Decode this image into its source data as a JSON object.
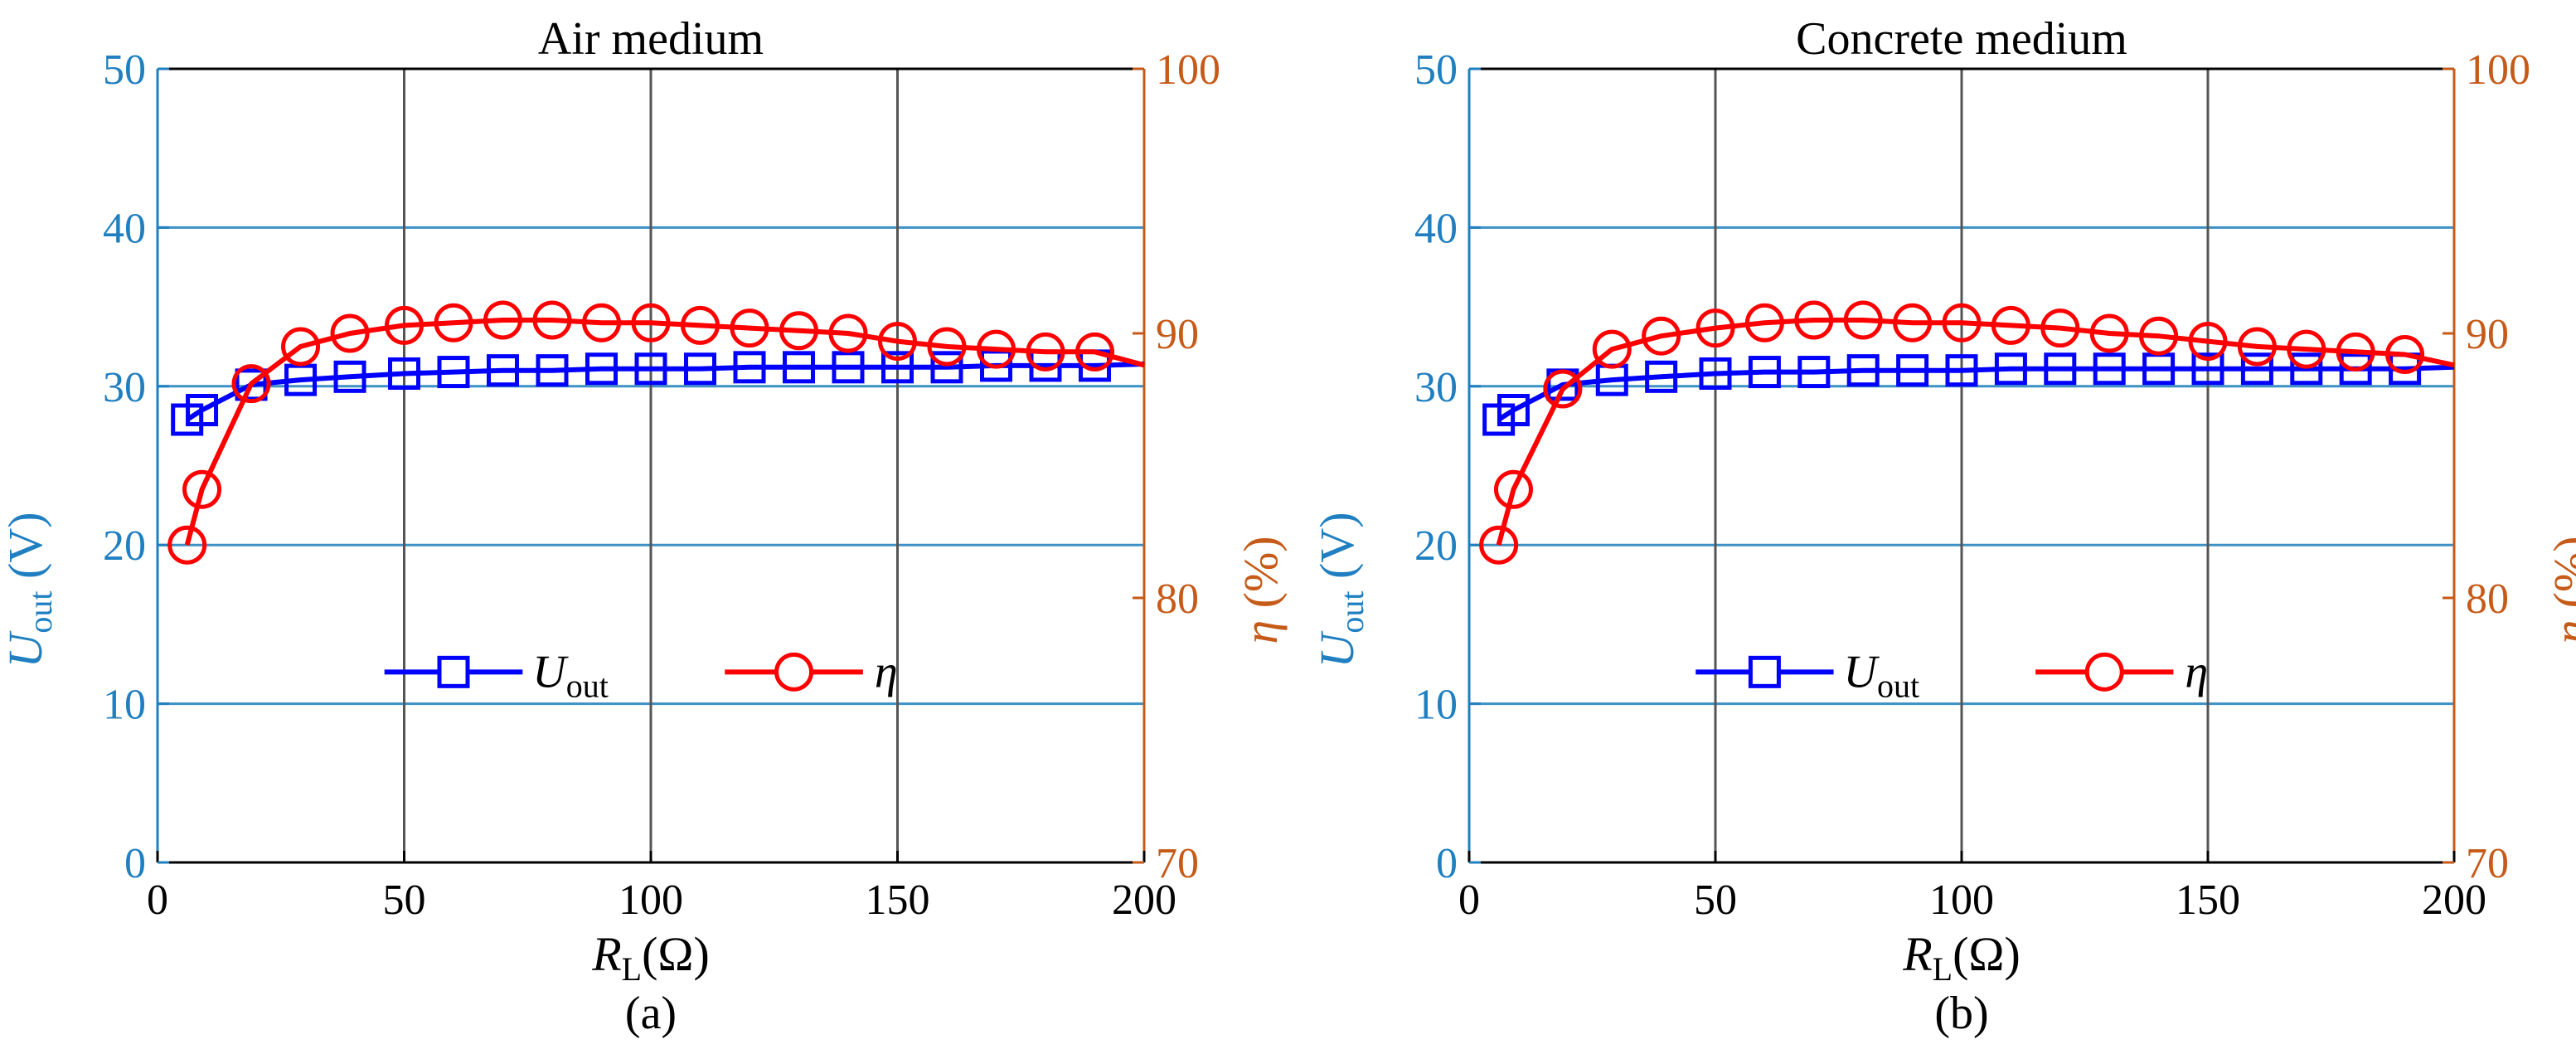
{
  "colors": {
    "left_axis": "#1f7fc0",
    "right_axis": "#c65a18",
    "uout_series": "#0000ff",
    "eta_series": "#ff0000",
    "h_grid": "#3d90c6",
    "v_grid": "#555555",
    "frame": "#000000"
  },
  "chart_data": [
    {
      "type": "line",
      "title": "Air medium",
      "caption": "(a)",
      "xlabel": {
        "main": "R",
        "sub": "L",
        "unit": "(Ω)"
      },
      "ylabel_left": {
        "main": "U",
        "sub": "out",
        "unit": " (V)"
      },
      "ylabel_right": {
        "main": "η",
        "unit": " (%)"
      },
      "xlim": [
        0,
        200
      ],
      "ylim_left": [
        0,
        50
      ],
      "ylim_right": [
        70,
        100
      ],
      "x_ticks": [
        "0",
        "50",
        "100",
        "150",
        "200"
      ],
      "y_ticks_left": [
        "0",
        "10",
        "20",
        "30",
        "40",
        "50"
      ],
      "y_ticks_right": [
        "70",
        "80",
        "90",
        "100"
      ],
      "grid": {
        "vertical": true,
        "horizontal": true
      },
      "legend": {
        "placement": "bottom-center"
      },
      "series": [
        {
          "name": "U_out",
          "legend_main": "U",
          "legend_sub": "out",
          "axis": "left",
          "marker": "square",
          "x": [
            6,
            9,
            19,
            29,
            39,
            50,
            60,
            70,
            80,
            90,
            100,
            110,
            120,
            130,
            140,
            150,
            160,
            170,
            180,
            190
          ],
          "y": [
            27.9,
            28.5,
            30.1,
            30.4,
            30.6,
            30.8,
            30.9,
            31.0,
            31.0,
            31.1,
            31.1,
            31.1,
            31.2,
            31.2,
            31.2,
            31.2,
            31.2,
            31.3,
            31.3,
            31.3
          ],
          "line_end": {
            "x": 200,
            "y": 31.4
          }
        },
        {
          "name": "η",
          "legend_main": "η",
          "axis": "right",
          "marker": "circle",
          "x": [
            6,
            9,
            19,
            29,
            39,
            50,
            60,
            70,
            80,
            90,
            100,
            110,
            120,
            130,
            140,
            150,
            160,
            170,
            180,
            190
          ],
          "y": [
            82.0,
            84.1,
            88.1,
            89.5,
            90.0,
            90.3,
            90.4,
            90.5,
            90.5,
            90.4,
            90.4,
            90.3,
            90.2,
            90.1,
            90.0,
            89.7,
            89.5,
            89.4,
            89.3,
            89.3
          ],
          "line_end": {
            "x": 200,
            "y": 88.8
          }
        }
      ]
    },
    {
      "type": "line",
      "title": "Concrete medium",
      "caption": "(b)",
      "xlabel": {
        "main": "R",
        "sub": "L",
        "unit": "(Ω)"
      },
      "ylabel_left": {
        "main": "U",
        "sub": "out",
        "unit": " (V)"
      },
      "ylabel_right": {
        "main": "η",
        "unit": " (%)"
      },
      "xlim": [
        0,
        200
      ],
      "ylim_left": [
        0,
        50
      ],
      "ylim_right": [
        70,
        100
      ],
      "x_ticks": [
        "0",
        "50",
        "100",
        "150",
        "200"
      ],
      "y_ticks_left": [
        "0",
        "10",
        "20",
        "30",
        "40",
        "50"
      ],
      "y_ticks_right": [
        "70",
        "80",
        "90",
        "100"
      ],
      "grid": {
        "vertical": true,
        "horizontal": true
      },
      "legend": {
        "placement": "bottom-center"
      },
      "series": [
        {
          "name": "U_out",
          "legend_main": "U",
          "legend_sub": "out",
          "axis": "left",
          "marker": "square",
          "x": [
            6,
            9,
            19,
            29,
            39,
            50,
            60,
            70,
            80,
            90,
            100,
            110,
            120,
            130,
            140,
            150,
            160,
            170,
            180,
            190
          ],
          "y": [
            27.9,
            28.5,
            30.1,
            30.4,
            30.6,
            30.8,
            30.9,
            30.9,
            31.0,
            31.0,
            31.0,
            31.1,
            31.1,
            31.1,
            31.1,
            31.1,
            31.1,
            31.1,
            31.1,
            31.1
          ],
          "line_end": {
            "x": 200,
            "y": 31.2
          }
        },
        {
          "name": "η",
          "legend_main": "η",
          "axis": "right",
          "marker": "circle",
          "x": [
            6,
            9,
            19,
            29,
            39,
            50,
            60,
            70,
            80,
            90,
            100,
            110,
            120,
            130,
            140,
            150,
            160,
            170,
            180,
            190
          ],
          "y": [
            82.0,
            84.1,
            87.9,
            89.4,
            89.9,
            90.2,
            90.4,
            90.5,
            90.5,
            90.4,
            90.4,
            90.3,
            90.2,
            90.0,
            89.9,
            89.7,
            89.5,
            89.4,
            89.3,
            89.2
          ],
          "line_end": {
            "x": 200,
            "y": 88.8
          }
        }
      ]
    }
  ]
}
